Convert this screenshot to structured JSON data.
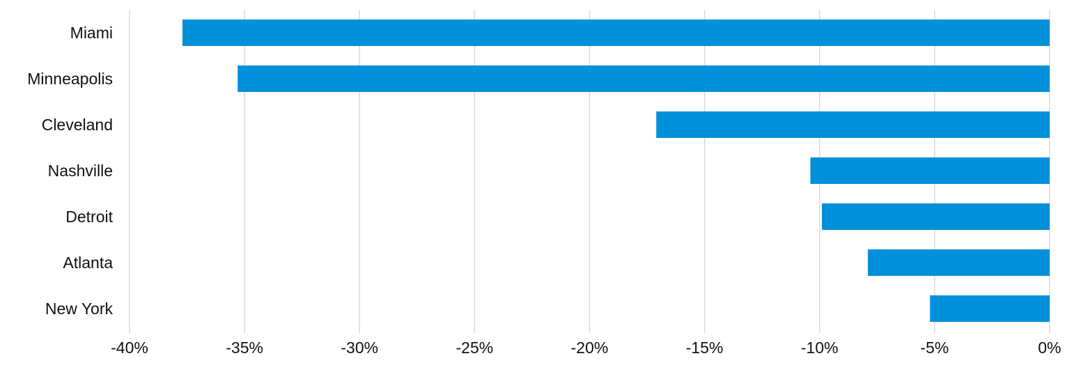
{
  "chart_data": {
    "type": "bar",
    "orientation": "horizontal",
    "title": "",
    "xlabel": "",
    "ylabel": "",
    "categories": [
      "Miami",
      "Minneapolis",
      "Cleveland",
      "Nashville",
      "Detroit",
      "Atlanta",
      "New York"
    ],
    "values": [
      -37.7,
      -35.3,
      -17.1,
      -10.4,
      -9.9,
      -7.9,
      -5.2
    ],
    "xlim": [
      -40,
      0
    ],
    "xticks": [
      -40,
      -35,
      -30,
      -25,
      -20,
      -15,
      -10,
      -5,
      0
    ],
    "xtick_labels": [
      "-40%",
      "-35%",
      "-30%",
      "-25%",
      "-20%",
      "-15%",
      "-10%",
      "-5%",
      "0%"
    ],
    "grid": "vertical",
    "legend": "none",
    "colors": {
      "bar": "#0090d9",
      "grid": "#d9d9d9",
      "text": "#111111"
    }
  }
}
